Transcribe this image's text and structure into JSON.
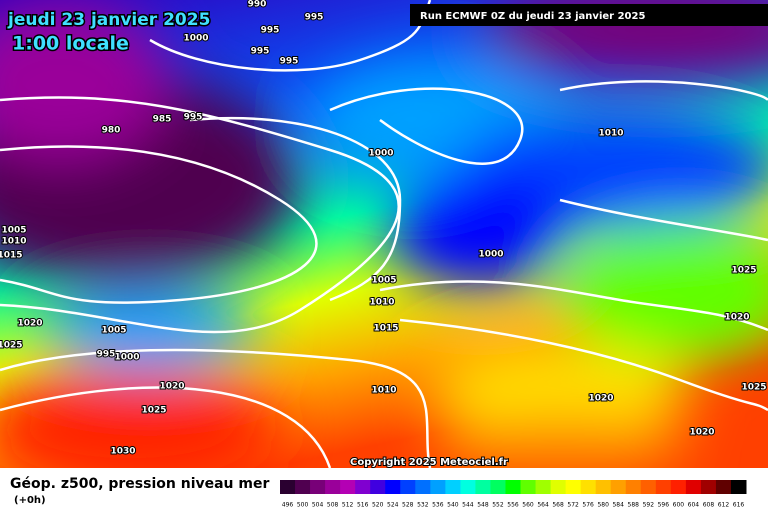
{
  "header": {
    "date": "jeudi 23 janvier 2025",
    "time": "1:00 locale",
    "run": "Run ECMWF 0Z du jeudi 23 janvier 2025"
  },
  "copyright": "Copyright 2025 Meteociel.fr",
  "footer": {
    "title": "Géop. z500, pression niveau mer",
    "lead": "(+0h)"
  },
  "isobar_labels": [
    990,
    995,
    995,
    1000,
    995,
    995,
    980,
    985,
    995,
    1000,
    1010,
    1005,
    1010,
    1015,
    1000,
    1025,
    1005,
    1010,
    1015,
    1020,
    1025,
    1005,
    995,
    1000,
    1020,
    1020,
    1025,
    1025,
    1010,
    1020,
    1020,
    1030
  ],
  "colorbar": {
    "labels": [
      496,
      500,
      504,
      508,
      512,
      516,
      520,
      524,
      528,
      532,
      536,
      540,
      544,
      548,
      552,
      556,
      560,
      564,
      568,
      572,
      576,
      580,
      584,
      588,
      592,
      596,
      600,
      604,
      608,
      612,
      616
    ],
    "colors": [
      "#2a0030",
      "#500050",
      "#780078",
      "#9a009a",
      "#b400b4",
      "#8000d0",
      "#4000e0",
      "#0000ff",
      "#0040ff",
      "#0070ff",
      "#00a0ff",
      "#00d0ff",
      "#00ffe0",
      "#00ffa0",
      "#00ff60",
      "#00ff00",
      "#60ff00",
      "#a0ff00",
      "#e0ff00",
      "#ffff00",
      "#ffe000",
      "#ffc000",
      "#ffa000",
      "#ff8000",
      "#ff6000",
      "#ff4000",
      "#ff2000",
      "#e00000",
      "#a00000",
      "#600000",
      "#000000"
    ]
  }
}
